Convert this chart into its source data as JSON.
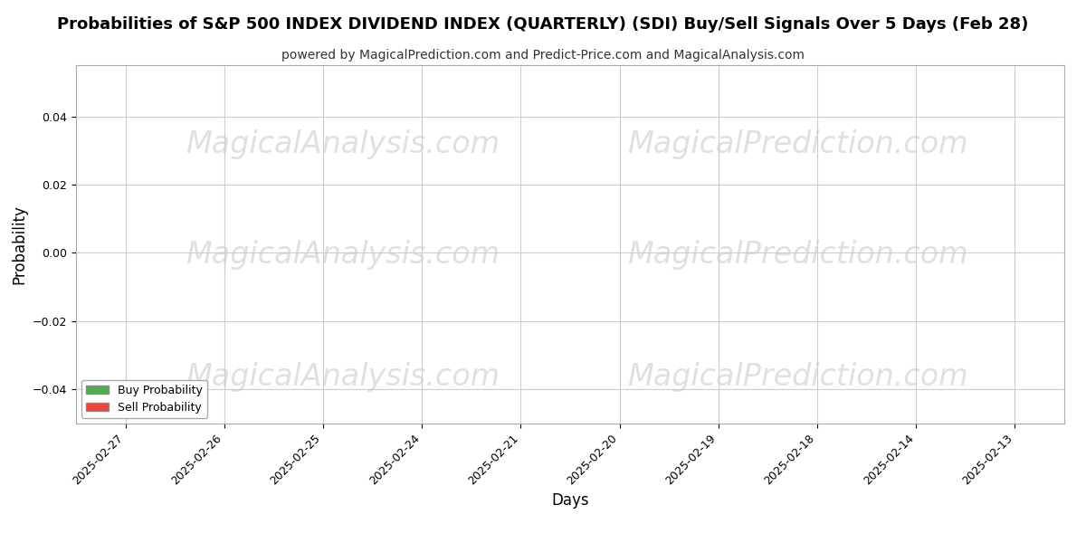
{
  "title": "Probabilities of S&P 500 INDEX DIVIDEND INDEX (QUARTERLY) (SDI) Buy/Sell Signals Over 5 Days (Feb 28)",
  "subtitle": "powered by MagicalPrediction.com and Predict-Price.com and MagicalAnalysis.com",
  "xlabel": "Days",
  "ylabel": "Probability",
  "ylim": [
    -0.05,
    0.055
  ],
  "yticks": [
    -0.04,
    -0.02,
    0.0,
    0.02,
    0.04
  ],
  "x_dates": [
    "2025-02-27",
    "2025-02-26",
    "2025-02-25",
    "2025-02-24",
    "2025-02-21",
    "2025-02-20",
    "2025-02-19",
    "2025-02-18",
    "2025-02-14",
    "2025-02-13"
  ],
  "buy_values": [
    0,
    0,
    0,
    0,
    0,
    0,
    0,
    0,
    0,
    0
  ],
  "sell_values": [
    0,
    0,
    0,
    0,
    0,
    0,
    0,
    0,
    0,
    0
  ],
  "buy_color": "#4caf50",
  "sell_color": "#f44336",
  "buy_label": "Buy Probability",
  "sell_label": "Sell Probability",
  "legend_loc": "lower left",
  "watermark_color": "#cccccc",
  "watermark_fontsize": 24,
  "watermark_alpha": 0.6,
  "bg_color": "#ffffff",
  "grid_color": "#cccccc",
  "title_fontsize": 13,
  "subtitle_fontsize": 10,
  "axis_label_fontsize": 12,
  "tick_fontsize": 9
}
